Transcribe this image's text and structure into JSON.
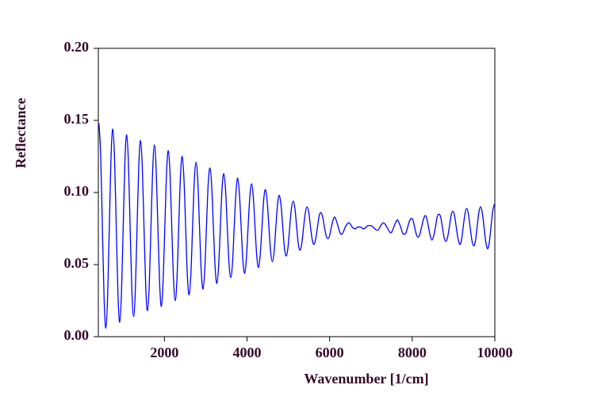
{
  "chart_data": {
    "type": "line",
    "x_label": "Wavenumber [1/cm]",
    "y_label": "Reflectance",
    "xlim": [
      400,
      10000
    ],
    "ylim": [
      0,
      0.2
    ],
    "xticks": [
      2000,
      4000,
      6000,
      8000,
      10000
    ],
    "yticks": [
      {
        "value": 0,
        "label": "0.00"
      },
      {
        "value": 0.05,
        "label": "0.05"
      },
      {
        "value": 0.1,
        "label": "0.10"
      },
      {
        "value": 0.15,
        "label": "0.15"
      },
      {
        "value": 0.2,
        "label": "0.20"
      }
    ],
    "grid": false,
    "x": [
      414,
      456,
      498,
      540,
      582,
      624,
      666,
      708,
      750,
      792,
      834,
      876,
      918,
      960,
      1002,
      1044,
      1086,
      1128,
      1170,
      1212,
      1254,
      1296,
      1338,
      1380,
      1422,
      1464,
      1506,
      1548,
      1590,
      1632,
      1674,
      1716,
      1758,
      1800,
      1842,
      1884,
      1926,
      1968,
      2010,
      2052,
      2094,
      2136,
      2178,
      2220,
      2262,
      2304,
      2346,
      2388,
      2430,
      2472,
      2514,
      2556,
      2598,
      2640,
      2682,
      2724,
      2766,
      2808,
      2850,
      2892,
      2934,
      2976,
      3018,
      3060,
      3102,
      3144,
      3186,
      3228,
      3270,
      3312,
      3354,
      3396,
      3438,
      3480,
      3522,
      3564,
      3606,
      3648,
      3690,
      3732,
      3774,
      3816,
      3858,
      3900,
      3942,
      3984,
      4026,
      4068,
      4110,
      4152,
      4194,
      4236,
      4278,
      4320,
      4362,
      4404,
      4446,
      4488,
      4530,
      4572,
      4614,
      4656,
      4698,
      4740,
      4782,
      4824,
      4866,
      4908,
      4950,
      4992,
      5034,
      5076,
      5118,
      5160,
      5202,
      5244,
      5286,
      5328,
      5370,
      5412,
      5454,
      5496,
      5538,
      5580,
      5622,
      5664,
      5706,
      5748,
      5790,
      5832,
      5874,
      5916,
      5958,
      6000,
      6042,
      6084,
      6126,
      6168,
      6210,
      6252,
      6294,
      6336,
      6378,
      6420,
      6462,
      6504,
      6546,
      6588,
      6630,
      6672,
      6714,
      6756,
      6798,
      6840,
      6882,
      6924,
      6966,
      7008,
      7050,
      7092,
      7134,
      7176,
      7218,
      7260,
      7302,
      7344,
      7386,
      7428,
      7470,
      7512,
      7554,
      7596,
      7638,
      7680,
      7722,
      7764,
      7806,
      7848,
      7890,
      7932,
      7974,
      8016,
      8058,
      8100,
      8142,
      8184,
      8226,
      8268,
      8310,
      8352,
      8394,
      8436,
      8478,
      8520,
      8562,
      8604,
      8646,
      8688,
      8730,
      8772,
      8814,
      8856,
      8898,
      8940,
      8982,
      9024,
      9066,
      9108,
      9150,
      9192,
      9234,
      9276,
      9318,
      9360,
      9402,
      9444,
      9486,
      9528,
      9570,
      9612,
      9654,
      9696,
      9738,
      9780,
      9822,
      9864,
      9906,
      9948,
      9990
    ],
    "series": [
      {
        "color": "#0000ff",
        "values": [
          0.148,
          0.127,
          0.076,
          0.026,
          0.006,
          0.027,
          0.076,
          0.125,
          0.144,
          0.124,
          0.076,
          0.029,
          0.01,
          0.03,
          0.076,
          0.122,
          0.14,
          0.121,
          0.076,
          0.032,
          0.014,
          0.032,
          0.076,
          0.119,
          0.136,
          0.118,
          0.076,
          0.034,
          0.018,
          0.035,
          0.076,
          0.116,
          0.133,
          0.116,
          0.076,
          0.037,
          0.021,
          0.038,
          0.076,
          0.114,
          0.129,
          0.113,
          0.076,
          0.04,
          0.025,
          0.04,
          0.076,
          0.111,
          0.125,
          0.11,
          0.076,
          0.042,
          0.029,
          0.043,
          0.076,
          0.108,
          0.121,
          0.108,
          0.076,
          0.045,
          0.033,
          0.046,
          0.076,
          0.106,
          0.117,
          0.105,
          0.076,
          0.048,
          0.037,
          0.049,
          0.076,
          0.103,
          0.113,
          0.102,
          0.076,
          0.051,
          0.041,
          0.051,
          0.076,
          0.1,
          0.11,
          0.099,
          0.076,
          0.053,
          0.044,
          0.054,
          0.076,
          0.097,
          0.106,
          0.097,
          0.076,
          0.056,
          0.048,
          0.057,
          0.076,
          0.095,
          0.102,
          0.094,
          0.076,
          0.059,
          0.052,
          0.059,
          0.076,
          0.092,
          0.098,
          0.091,
          0.076,
          0.061,
          0.056,
          0.062,
          0.076,
          0.089,
          0.094,
          0.089,
          0.076,
          0.064,
          0.06,
          0.065,
          0.076,
          0.086,
          0.09,
          0.086,
          0.076,
          0.067,
          0.064,
          0.068,
          0.076,
          0.084,
          0.086,
          0.083,
          0.076,
          0.07,
          0.068,
          0.07,
          0.076,
          0.081,
          0.083,
          0.08,
          0.076,
          0.072,
          0.071,
          0.073,
          0.076,
          0.078,
          0.079,
          0.078,
          0.076,
          0.075,
          0.075,
          0.076,
          0.076,
          0.076,
          0.075,
          0.075,
          0.076,
          0.077,
          0.077,
          0.077,
          0.076,
          0.075,
          0.074,
          0.074,
          0.076,
          0.078,
          0.079,
          0.078,
          0.076,
          0.074,
          0.072,
          0.073,
          0.076,
          0.079,
          0.081,
          0.079,
          0.076,
          0.072,
          0.071,
          0.072,
          0.076,
          0.08,
          0.082,
          0.081,
          0.076,
          0.071,
          0.069,
          0.071,
          0.076,
          0.081,
          0.084,
          0.082,
          0.076,
          0.07,
          0.067,
          0.07,
          0.076,
          0.083,
          0.085,
          0.083,
          0.076,
          0.069,
          0.066,
          0.069,
          0.076,
          0.084,
          0.087,
          0.084,
          0.076,
          0.068,
          0.064,
          0.067,
          0.076,
          0.085,
          0.089,
          0.085,
          0.076,
          0.067,
          0.063,
          0.066,
          0.076,
          0.086,
          0.09,
          0.086,
          0.076,
          0.066,
          0.061,
          0.065,
          0.076,
          0.087,
          0.092
        ]
      }
    ]
  }
}
